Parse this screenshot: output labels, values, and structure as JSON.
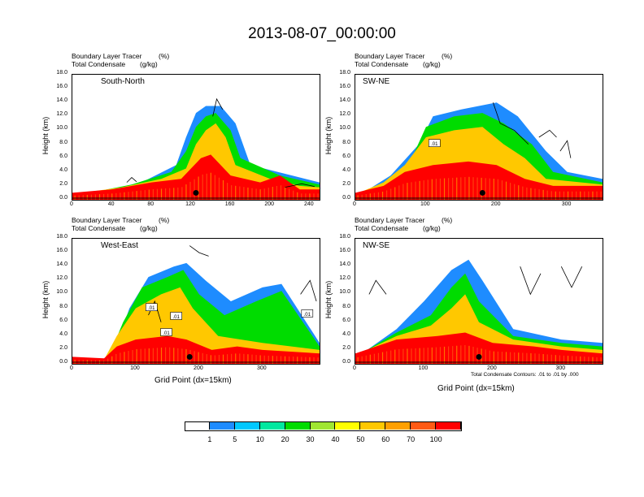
{
  "title": "2013-08-07_00:00:00",
  "panel_title_tracer": "Boundary Layer Tracer",
  "panel_title_tracer_unit": "(%)",
  "panel_title_condensate": "Total Condensate",
  "panel_title_condensate_unit": "(g/kg)",
  "y_axis_label": "Height (km)",
  "x_axis_label": "Grid Point (dx=15km)",
  "contour_note": "Total Condensate Contours: .01 to .01 by .000",
  "colorbar": {
    "colors": [
      "#ffffff",
      "#1e8cff",
      "#00c8ff",
      "#00e8a0",
      "#00dc00",
      "#a0e632",
      "#ffff00",
      "#ffc800",
      "#ffa000",
      "#ff5a14",
      "#ff0000"
    ],
    "labels": [
      "1",
      "5",
      "10",
      "20",
      "30",
      "40",
      "50",
      "60",
      "70",
      "100"
    ]
  },
  "chart_data": [
    {
      "type": "heatmap",
      "name": "South-North",
      "xlabel": "",
      "ylabel": "Height (km)",
      "xlim": [
        0,
        250
      ],
      "ylim": [
        0,
        18
      ],
      "x_ticks": [
        "0",
        "40",
        "80",
        "120",
        "160",
        "200",
        "240"
      ],
      "y_ticks": [
        "0.0",
        "2.0",
        "4.0",
        "6.0",
        "8.0",
        "10.0",
        "12.0",
        "14.0",
        "16.0",
        "18.0"
      ],
      "contour_labels": [],
      "colors": [
        "#ff0000",
        "#ff5a14",
        "#ffa000",
        "#ffc800",
        "#ffff00",
        "#a0e632",
        "#00dc00",
        "#00e8a0",
        "#00c8ff",
        "#1e8cff"
      ],
      "layers": [
        [
          [
            0,
            1.0
          ],
          [
            40,
            1.5
          ],
          [
            80,
            2.5
          ],
          [
            110,
            3.0
          ],
          [
            120,
            4.5
          ],
          [
            130,
            6.0
          ],
          [
            140,
            6.5
          ],
          [
            150,
            5.0
          ],
          [
            160,
            3.5
          ],
          [
            190,
            2.5
          ],
          [
            210,
            3.5
          ],
          [
            230,
            1.5
          ],
          [
            250,
            1.5
          ]
        ],
        [
          [
            0,
            0.8
          ],
          [
            50,
            1.8
          ],
          [
            90,
            3.0
          ],
          [
            115,
            4.5
          ],
          [
            125,
            8.0
          ],
          [
            135,
            10.0
          ],
          [
            145,
            11.0
          ],
          [
            155,
            9.0
          ],
          [
            165,
            5.0
          ],
          [
            200,
            3.0
          ],
          [
            230,
            2.0
          ],
          [
            250,
            1.8
          ]
        ],
        [
          [
            0,
            0.5
          ],
          [
            60,
            2.2
          ],
          [
            100,
            4.0
          ],
          [
            115,
            7.0
          ],
          [
            125,
            10.5
          ],
          [
            135,
            12.0
          ],
          [
            145,
            12.5
          ],
          [
            160,
            10.0
          ],
          [
            170,
            6.0
          ],
          [
            210,
            3.5
          ],
          [
            250,
            2.2
          ]
        ],
        [
          [
            0,
            0.3
          ],
          [
            70,
            2.5
          ],
          [
            105,
            5.0
          ],
          [
            115,
            9.0
          ],
          [
            125,
            12.5
          ],
          [
            135,
            13.5
          ],
          [
            150,
            13.5
          ],
          [
            165,
            11.0
          ],
          [
            180,
            5.0
          ],
          [
            250,
            2.5
          ]
        ]
      ],
      "contours": [
        [
          [
            142,
            12
          ],
          [
            146,
            14.5
          ],
          [
            152,
            13
          ]
        ],
        [
          [
            55,
            2.5
          ],
          [
            60,
            3.2
          ],
          [
            65,
            2.6
          ]
        ],
        [
          [
            215,
            1.8
          ],
          [
            232,
            2.3
          ],
          [
            245,
            1.9
          ]
        ]
      ],
      "marker": [
        125,
        1.0
      ]
    },
    {
      "type": "heatmap",
      "name": "SW-NE",
      "xlabel": "",
      "ylabel": "Height (km)",
      "xlim": [
        0,
        350
      ],
      "ylim": [
        0,
        18
      ],
      "x_ticks": [
        "0",
        "100",
        "200",
        "300"
      ],
      "y_ticks": [
        "0.0",
        "2.0",
        "4.0",
        "6.0",
        "8.0",
        "10.0",
        "12.0",
        "14.0",
        "16.0",
        "18.0"
      ],
      "contour_labels": [
        ".01"
      ],
      "colors": [
        "#ff0000",
        "#ff5a14",
        "#ffa000",
        "#ffc800",
        "#ffff00",
        "#a0e632",
        "#00dc00",
        "#00e8a0",
        "#00c8ff",
        "#1e8cff"
      ],
      "layers": [
        [
          [
            0,
            1.0
          ],
          [
            40,
            2.0
          ],
          [
            70,
            4.0
          ],
          [
            110,
            5.0
          ],
          [
            160,
            5.5
          ],
          [
            200,
            5.0
          ],
          [
            240,
            3.0
          ],
          [
            280,
            2.0
          ],
          [
            350,
            2.0
          ]
        ],
        [
          [
            0,
            0.8
          ],
          [
            40,
            2.5
          ],
          [
            70,
            5.0
          ],
          [
            100,
            9.0
          ],
          [
            140,
            10.0
          ],
          [
            180,
            10.5
          ],
          [
            210,
            8.0
          ],
          [
            240,
            6.0
          ],
          [
            270,
            3.0
          ],
          [
            350,
            2.2
          ]
        ],
        [
          [
            0,
            0.5
          ],
          [
            50,
            3.0
          ],
          [
            80,
            6.0
          ],
          [
            100,
            10.5
          ],
          [
            140,
            12.0
          ],
          [
            180,
            12.5
          ],
          [
            210,
            11.0
          ],
          [
            250,
            8.0
          ],
          [
            280,
            4.0
          ],
          [
            350,
            2.5
          ]
        ],
        [
          [
            0,
            0.3
          ],
          [
            50,
            3.5
          ],
          [
            90,
            8.0
          ],
          [
            110,
            12.0
          ],
          [
            150,
            13.0
          ],
          [
            200,
            14.0
          ],
          [
            230,
            12.0
          ],
          [
            270,
            7.0
          ],
          [
            300,
            4.0
          ],
          [
            350,
            3.0
          ]
        ]
      ],
      "contours": [
        [
          [
            195,
            14
          ],
          [
            205,
            11
          ],
          [
            225,
            10
          ],
          [
            245,
            8
          ]
        ],
        [
          [
            290,
            7
          ],
          [
            300,
            8.5
          ],
          [
            305,
            6
          ]
        ],
        [
          [
            260,
            9
          ],
          [
            275,
            10
          ],
          [
            285,
            9
          ]
        ]
      ],
      "marker": [
        180,
        1.0
      ]
    },
    {
      "type": "heatmap",
      "name": "West-East",
      "xlabel": "Grid Point (dx=15km)",
      "ylabel": "Height (km)",
      "xlim": [
        0,
        390
      ],
      "ylim": [
        0,
        18
      ],
      "x_ticks": [
        "0",
        "100",
        "200",
        "300"
      ],
      "y_ticks": [
        "0.0",
        "2.0",
        "4.0",
        "6.0",
        "8.0",
        "10.0",
        "12.0",
        "14.0",
        "16.0",
        "18.0"
      ],
      "contour_labels": [
        ".01",
        ".01",
        ".01",
        ".01"
      ],
      "colors": [
        "#ff0000",
        "#ff5a14",
        "#ffa000",
        "#ffc800",
        "#ffff00",
        "#a0e632",
        "#00dc00",
        "#00e8a0",
        "#00c8ff",
        "#1e8cff"
      ],
      "layers": [
        [
          [
            0,
            1.0
          ],
          [
            50,
            0.8
          ],
          [
            70,
            2.5
          ],
          [
            100,
            3.5
          ],
          [
            150,
            4.0
          ],
          [
            180,
            3.5
          ],
          [
            220,
            2.0
          ],
          [
            260,
            2.5
          ],
          [
            300,
            2.0
          ],
          [
            390,
            1.5
          ]
        ],
        [
          [
            0,
            0.8
          ],
          [
            50,
            0.6
          ],
          [
            70,
            4.0
          ],
          [
            100,
            8.0
          ],
          [
            140,
            10.0
          ],
          [
            170,
            11.0
          ],
          [
            190,
            8.0
          ],
          [
            230,
            4.0
          ],
          [
            300,
            3.0
          ],
          [
            390,
            2.0
          ]
        ],
        [
          [
            0,
            0.5
          ],
          [
            55,
            0.5
          ],
          [
            80,
            6.0
          ],
          [
            110,
            11.0
          ],
          [
            150,
            12.5
          ],
          [
            175,
            13.5
          ],
          [
            200,
            10.0
          ],
          [
            240,
            7.0
          ],
          [
            290,
            9.0
          ],
          [
            330,
            10.5
          ],
          [
            390,
            2.5
          ]
        ],
        [
          [
            0,
            0.3
          ],
          [
            60,
            0.4
          ],
          [
            90,
            8.0
          ],
          [
            120,
            12.5
          ],
          [
            160,
            14.0
          ],
          [
            180,
            14.5
          ],
          [
            210,
            12.0
          ],
          [
            250,
            9.0
          ],
          [
            300,
            11.0
          ],
          [
            330,
            11.5
          ],
          [
            390,
            3.0
          ]
        ]
      ],
      "contours": [
        [
          [
            185,
            17
          ],
          [
            200,
            16
          ],
          [
            215,
            15.5
          ]
        ],
        [
          [
            360,
            10
          ],
          [
            375,
            12
          ],
          [
            385,
            9
          ]
        ],
        [
          [
            120,
            7
          ],
          [
            130,
            9
          ],
          [
            140,
            6
          ]
        ]
      ],
      "marker": [
        185,
        1.0
      ]
    },
    {
      "type": "heatmap",
      "name": "NW-SE",
      "xlabel": "Grid Point (dx=15km)",
      "ylabel": "Height (km)",
      "xlim": [
        0,
        360
      ],
      "ylim": [
        0,
        18
      ],
      "x_ticks": [
        "0",
        "100",
        "200",
        "300"
      ],
      "y_ticks": [
        "0.0",
        "2.0",
        "4.0",
        "6.0",
        "8.0",
        "10.0",
        "12.0",
        "14.0",
        "16.0",
        "18.0"
      ],
      "contour_labels": [],
      "colors": [
        "#ff0000",
        "#ff5a14",
        "#ffa000",
        "#ffc800",
        "#ffff00",
        "#a0e632",
        "#00dc00",
        "#00e8a0",
        "#00c8ff",
        "#1e8cff"
      ],
      "layers": [
        [
          [
            0,
            1.5
          ],
          [
            60,
            3.5
          ],
          [
            120,
            4.0
          ],
          [
            160,
            4.5
          ],
          [
            200,
            3.0
          ],
          [
            260,
            2.5
          ],
          [
            300,
            2.0
          ],
          [
            360,
            1.5
          ]
        ],
        [
          [
            0,
            1.2
          ],
          [
            60,
            4.0
          ],
          [
            110,
            5.5
          ],
          [
            140,
            8.0
          ],
          [
            160,
            10.0
          ],
          [
            180,
            6.0
          ],
          [
            230,
            3.5
          ],
          [
            300,
            2.5
          ],
          [
            360,
            2.0
          ]
        ],
        [
          [
            0,
            1.0
          ],
          [
            60,
            4.5
          ],
          [
            110,
            7.0
          ],
          [
            140,
            11.0
          ],
          [
            160,
            13.0
          ],
          [
            180,
            9.0
          ],
          [
            230,
            4.0
          ],
          [
            300,
            3.0
          ],
          [
            360,
            2.5
          ]
        ],
        [
          [
            0,
            0.8
          ],
          [
            60,
            5.0
          ],
          [
            100,
            9.0
          ],
          [
            140,
            13.5
          ],
          [
            165,
            15.0
          ],
          [
            185,
            12.0
          ],
          [
            230,
            5.0
          ],
          [
            300,
            3.5
          ],
          [
            360,
            3.0
          ]
        ]
      ],
      "contours": [
        [
          [
            240,
            14
          ],
          [
            255,
            10
          ],
          [
            270,
            13
          ]
        ],
        [
          [
            300,
            14
          ],
          [
            315,
            11
          ],
          [
            330,
            14
          ]
        ],
        [
          [
            20,
            10
          ],
          [
            30,
            12
          ],
          [
            45,
            10
          ]
        ]
      ],
      "marker": [
        180,
        1.0
      ]
    }
  ]
}
